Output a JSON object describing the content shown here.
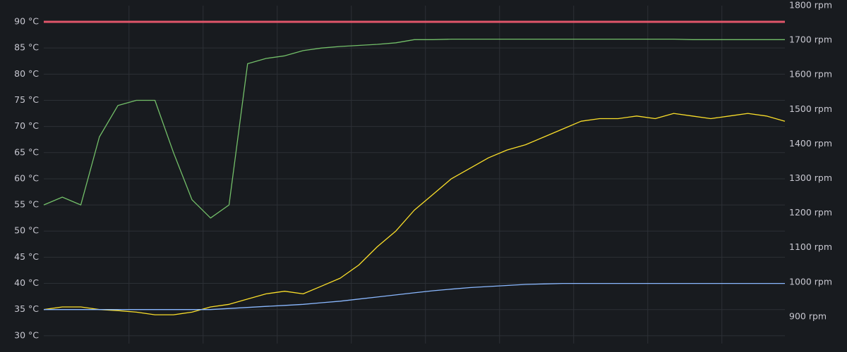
{
  "chart_data": {
    "type": "line",
    "x": [
      0,
      2.5,
      5,
      7.5,
      10,
      12.5,
      15,
      17.5,
      20,
      22.5,
      25,
      27.5,
      30,
      32.5,
      35,
      37.5,
      40,
      42.5,
      45,
      47.5,
      50,
      52.5,
      55,
      57.5,
      60,
      62.5,
      65,
      67.5,
      70,
      72.5,
      75,
      77.5,
      80,
      82.5,
      85,
      87.5,
      90,
      92.5,
      95,
      97.5,
      100
    ],
    "xlim": [
      0,
      100
    ],
    "xticks": [
      11.5,
      21.5,
      31.5,
      41.5,
      51.5,
      61.5,
      71.5,
      81.5,
      91.5
    ],
    "ylim": [
      28.5,
      93.1
    ],
    "yticks": [
      {
        "value": 30,
        "label": "30 °C"
      },
      {
        "value": 35,
        "label": "35 °C"
      },
      {
        "value": 40,
        "label": "40 °C"
      },
      {
        "value": 45,
        "label": "45 °C"
      },
      {
        "value": 50,
        "label": "50 °C"
      },
      {
        "value": 55,
        "label": "55 °C"
      },
      {
        "value": 60,
        "label": "60 °C"
      },
      {
        "value": 65,
        "label": "65 °C"
      },
      {
        "value": 70,
        "label": "70 °C"
      },
      {
        "value": 75,
        "label": "75 °C"
      },
      {
        "value": 80,
        "label": "80 °C"
      },
      {
        "value": 85,
        "label": "85 °C"
      },
      {
        "value": 90,
        "label": "90 °C"
      }
    ],
    "y2lim": [
      822.4,
      1800
    ],
    "y2ticks": [
      {
        "value": 900,
        "label": "900 rpm"
      },
      {
        "value": 1000,
        "label": "1000 rpm"
      },
      {
        "value": 1100,
        "label": "1100 rpm"
      },
      {
        "value": 1200,
        "label": "1200 rpm"
      },
      {
        "value": 1300,
        "label": "1300 rpm"
      },
      {
        "value": 1400,
        "label": "1400 rpm"
      },
      {
        "value": 1500,
        "label": "1500 rpm"
      },
      {
        "value": 1600,
        "label": "1600 rpm"
      },
      {
        "value": 1700,
        "label": "1700 rpm"
      },
      {
        "value": 1800,
        "label": "1800 rpm"
      }
    ],
    "grid": true,
    "threshold": {
      "value": 90,
      "color": "#e0566a"
    },
    "series": [
      {
        "color": "#73bf69",
        "values": [
          55,
          56.5,
          55,
          68,
          74,
          75,
          75,
          65,
          56,
          52.5,
          55,
          82,
          83,
          83.5,
          84.5,
          85,
          85.3,
          85.5,
          85.7,
          86,
          86.6,
          86.6,
          86.7,
          86.7,
          86.7,
          86.7,
          86.7,
          86.7,
          86.7,
          86.7,
          86.7,
          86.7,
          86.7,
          86.7,
          86.7,
          86.6,
          86.6,
          86.6,
          86.6,
          86.6,
          86.6
        ]
      },
      {
        "color": "#fade2a",
        "values": [
          35,
          35.5,
          35.5,
          35,
          34.8,
          34.5,
          34,
          34,
          34.5,
          35.5,
          36,
          37,
          38,
          38.5,
          38,
          39.5,
          41,
          43.5,
          47,
          50,
          54,
          57,
          60,
          62,
          64,
          65.5,
          66.5,
          68,
          69.5,
          71,
          71.5,
          71.5,
          72,
          71.5,
          72.5,
          72,
          71.5,
          72,
          72.5,
          72,
          71
        ]
      },
      {
        "color": "#8ab8ff",
        "values": [
          35,
          35,
          35,
          35,
          35,
          35,
          35,
          35,
          35,
          35,
          35.2,
          35.4,
          35.6,
          35.8,
          36,
          36.3,
          36.6,
          37,
          37.4,
          37.8,
          38.2,
          38.6,
          38.9,
          39.2,
          39.4,
          39.6,
          39.8,
          39.9,
          40,
          40,
          40,
          40,
          40,
          40,
          40,
          40,
          40,
          40,
          40,
          40,
          40
        ]
      }
    ]
  }
}
